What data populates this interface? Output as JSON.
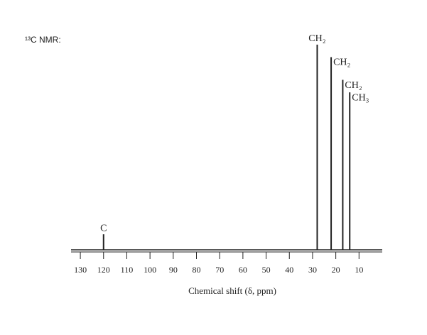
{
  "chart_data": {
    "type": "nmr",
    "heading": "¹³C NMR:",
    "x_label": "Chemical shift (δ, ppm)",
    "x": [
      120,
      28,
      22,
      17,
      14
    ],
    "values": [
      7.5,
      99,
      93,
      82,
      76
    ],
    "labels": [
      "C",
      "CH₂",
      "CH₂",
      "CH₂",
      "CH₃"
    ],
    "xlim": [
      134,
      0
    ],
    "xticks": [
      130,
      120,
      110,
      100,
      90,
      80,
      70,
      60,
      50,
      40,
      30,
      20,
      10
    ],
    "ylim": [
      0,
      100
    ],
    "color": "#222222"
  }
}
